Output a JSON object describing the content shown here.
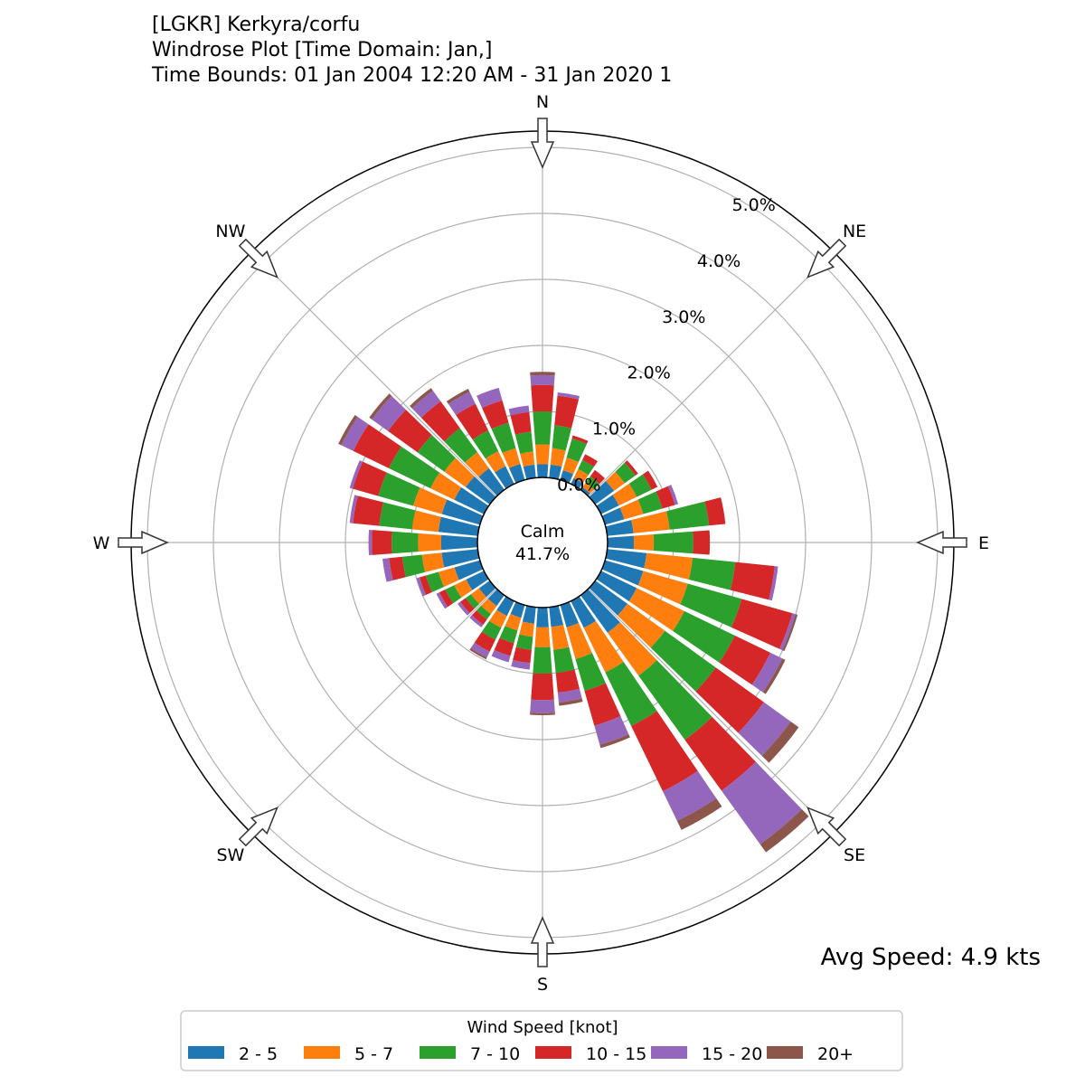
{
  "title": {
    "line1": "[LGKR] Kerkyra/corfu",
    "line2": "Windrose Plot [Time Domain: Jan,]",
    "line3": "Time Bounds: 01 Jan 2004 12:20 AM - 31 Jan 2020 1"
  },
  "calm": {
    "label": "Calm",
    "value": "41.7%"
  },
  "avg_speed": "Avg Speed: 4.9 kts",
  "chart_data": {
    "type": "windrose",
    "radial_unit": "%",
    "radial_ticks": [
      "0.0%",
      "1.0%",
      "2.0%",
      "3.0%",
      "4.0%",
      "5.0%"
    ],
    "radial_range": [
      0,
      5.8
    ],
    "directions": [
      "N",
      "NE",
      "E",
      "SE",
      "S",
      "SW",
      "W",
      "NW"
    ],
    "legend_title": "Wind Speed [knot]",
    "legend_position": "bottom-center",
    "grid": true,
    "bins": [
      {
        "label": "2 - 5",
        "color": "#1f77b4"
      },
      {
        "label": "5 - 7",
        "color": "#ff7f0e"
      },
      {
        "label": "7 - 10",
        "color": "#2ca02c"
      },
      {
        "label": "10 - 15",
        "color": "#d62728"
      },
      {
        "label": "15 - 20",
        "color": "#9467bd"
      },
      {
        "label": "20+",
        "color": "#8c564b"
      }
    ],
    "sectors": [
      {
        "dir": 0,
        "values": [
          0.2,
          0.3,
          0.5,
          0.4,
          0.15,
          0.05
        ]
      },
      {
        "dir": 10,
        "values": [
          0.2,
          0.25,
          0.35,
          0.45,
          0.05,
          0.0
        ]
      },
      {
        "dir": 20,
        "values": [
          0.15,
          0.2,
          0.3,
          0.05,
          0.0,
          0.0
        ]
      },
      {
        "dir": 30,
        "values": [
          0.1,
          0.15,
          0.15,
          0.1,
          0.0,
          0.0
        ]
      },
      {
        "dir": 40,
        "values": [
          0.05,
          0.08,
          0.12,
          0.12,
          0.0,
          0.0
        ]
      },
      {
        "dir": 50,
        "values": [
          0.35,
          0.2,
          0.2,
          0.05,
          0.0,
          0.0
        ]
      },
      {
        "dir": 60,
        "values": [
          0.3,
          0.3,
          0.25,
          0.1,
          0.0,
          0.0
        ]
      },
      {
        "dir": 70,
        "values": [
          0.3,
          0.3,
          0.3,
          0.2,
          0.05,
          0.0
        ]
      },
      {
        "dir": 80,
        "values": [
          0.4,
          0.55,
          0.6,
          0.25,
          0.0,
          0.0
        ]
      },
      {
        "dir": 90,
        "values": [
          0.4,
          0.3,
          0.6,
          0.25,
          0.0,
          0.0
        ]
      },
      {
        "dir": 100,
        "values": [
          0.6,
          0.7,
          0.65,
          0.6,
          0.05,
          0.0
        ]
      },
      {
        "dir": 110,
        "values": [
          0.6,
          0.7,
          0.85,
          0.8,
          0.05,
          0.03
        ]
      },
      {
        "dir": 120,
        "values": [
          0.6,
          0.8,
          0.85,
          0.6,
          0.2,
          0.05
        ]
      },
      {
        "dir": 130,
        "values": [
          0.6,
          0.7,
          0.95,
          0.9,
          0.5,
          0.15
        ]
      },
      {
        "dir": 140,
        "values": [
          0.7,
          0.8,
          1.2,
          0.95,
          1.0,
          0.15
        ]
      },
      {
        "dir": 150,
        "values": [
          0.45,
          0.75,
          0.9,
          1.1,
          0.5,
          0.15
        ]
      },
      {
        "dir": 160,
        "values": [
          0.35,
          0.5,
          0.5,
          0.55,
          0.3,
          0.05
        ]
      },
      {
        "dir": 170,
        "values": [
          0.3,
          0.35,
          0.35,
          0.3,
          0.15,
          0.05
        ]
      },
      {
        "dir": 180,
        "values": [
          0.3,
          0.3,
          0.4,
          0.4,
          0.2,
          0.03
        ]
      },
      {
        "dir": 190,
        "values": [
          0.25,
          0.2,
          0.2,
          0.2,
          0.1,
          0.0
        ]
      },
      {
        "dir": 200,
        "values": [
          0.2,
          0.2,
          0.2,
          0.2,
          0.1,
          0.0
        ]
      },
      {
        "dir": 210,
        "values": [
          0.25,
          0.2,
          0.2,
          0.2,
          0.1,
          0.03
        ]
      },
      {
        "dir": 220,
        "values": [
          0.2,
          0.15,
          0.1,
          0.1,
          0.05,
          0.0
        ]
      },
      {
        "dir": 230,
        "values": [
          0.2,
          0.15,
          0.1,
          0.1,
          0.05,
          0.0
        ]
      },
      {
        "dir": 240,
        "values": [
          0.3,
          0.2,
          0.15,
          0.1,
          0.05,
          0.0
        ]
      },
      {
        "dir": 250,
        "values": [
          0.4,
          0.25,
          0.2,
          0.1,
          0.05,
          0.0
        ]
      },
      {
        "dir": 260,
        "values": [
          0.55,
          0.3,
          0.3,
          0.2,
          0.1,
          0.0
        ]
      },
      {
        "dir": 270,
        "values": [
          0.55,
          0.35,
          0.4,
          0.3,
          0.05,
          0.0
        ]
      },
      {
        "dir": 280,
        "values": [
          0.6,
          0.4,
          0.5,
          0.4,
          0.05,
          0.0
        ]
      },
      {
        "dir": 290,
        "values": [
          0.6,
          0.45,
          0.55,
          0.4,
          0.05,
          0.0
        ]
      },
      {
        "dir": 300,
        "values": [
          0.5,
          0.4,
          0.7,
          0.6,
          0.2,
          0.05
        ]
      },
      {
        "dir": 310,
        "values": [
          0.45,
          0.4,
          0.5,
          0.55,
          0.3,
          0.05
        ]
      },
      {
        "dir": 320,
        "values": [
          0.4,
          0.3,
          0.45,
          0.5,
          0.2,
          0.05
        ]
      },
      {
        "dir": 330,
        "values": [
          0.3,
          0.25,
          0.35,
          0.45,
          0.2,
          0.05
        ]
      },
      {
        "dir": 340,
        "values": [
          0.25,
          0.25,
          0.4,
          0.35,
          0.2,
          0.0
        ]
      },
      {
        "dir": 350,
        "values": [
          0.2,
          0.2,
          0.3,
          0.3,
          0.1,
          0.0
        ]
      }
    ]
  }
}
